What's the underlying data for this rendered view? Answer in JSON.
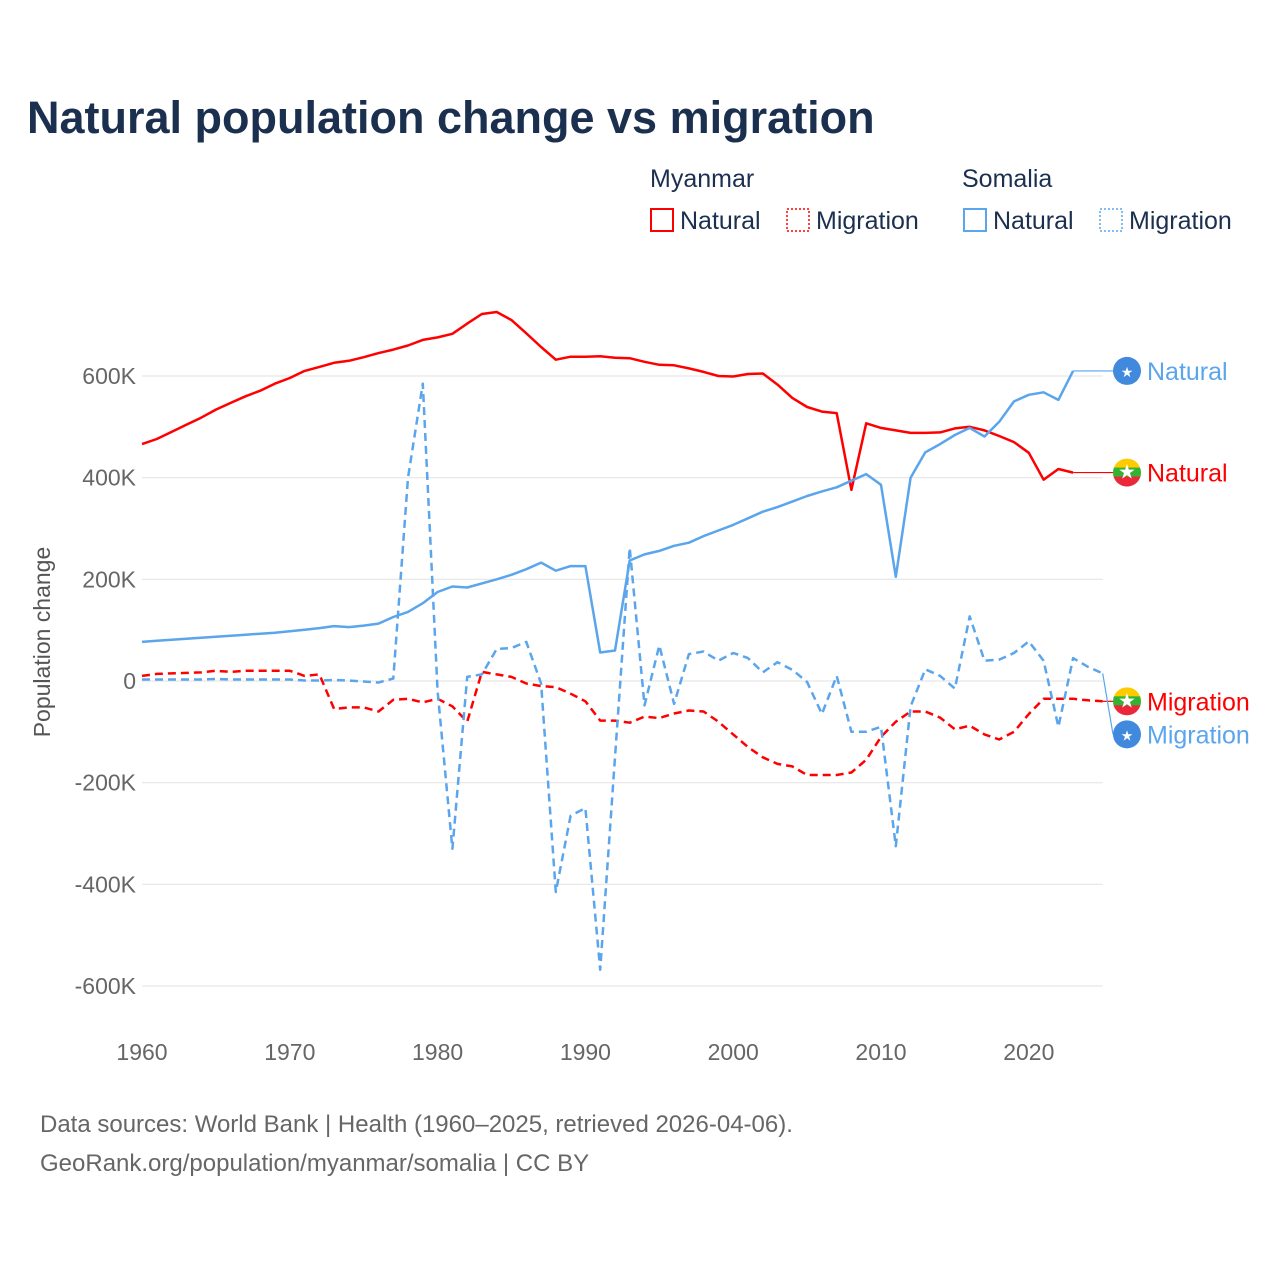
{
  "colors": {
    "myanmar": "#ff0000",
    "somalia": "#5aa5ec",
    "grid": "#e6e6e6",
    "title": "#1b2f4f"
  },
  "chart_data": {
    "type": "line",
    "title": "Natural population change vs migration",
    "xlabel": "",
    "ylabel": "Population change",
    "xlim": [
      1960,
      2025
    ],
    "ylim": [
      -600000,
      750000
    ],
    "x_ticks": [
      1960,
      1970,
      1980,
      1990,
      2000,
      2010,
      2020
    ],
    "x_tick_labels": [
      "1960",
      "1970",
      "1980",
      "1990",
      "2000",
      "2010",
      "2020"
    ],
    "y_ticks": [
      600000,
      400000,
      200000,
      0,
      -200000,
      -400000,
      -600000
    ],
    "y_tick_labels": [
      "600K",
      "400K",
      "200K",
      "0",
      "-200K",
      "-400K",
      "-600K"
    ],
    "grid": true,
    "legend": {
      "placement": "top-right",
      "groups": [
        {
          "name": "Myanmar",
          "entries": [
            "Natural",
            "Migration"
          ]
        },
        {
          "name": "Somalia",
          "entries": [
            "Natural",
            "Migration"
          ]
        }
      ]
    },
    "start_year": 1960,
    "series": [
      {
        "name": "Myanmar Natural",
        "country": "Myanmar",
        "kind": "Natural",
        "end_label": "Natural",
        "color": "#ff0000",
        "dash": false,
        "values": [
          466,
          476,
          490,
          504,
          518,
          534,
          547,
          560,
          571,
          585,
          596,
          610,
          618,
          626,
          630,
          637,
          645,
          652,
          660,
          671,
          676,
          683,
          703,
          722,
          726,
          710,
          684,
          657,
          632,
          638,
          638,
          639,
          636,
          635,
          628,
          622,
          621,
          615,
          608,
          600,
          599,
          604,
          605,
          583,
          557,
          539,
          530,
          527,
          376,
          507,
          498,
          493,
          488,
          488,
          489,
          497,
          500,
          493,
          482,
          470,
          449,
          396,
          417,
          410
        ]
      },
      {
        "name": "Myanmar Migration",
        "country": "Myanmar",
        "kind": "Migration",
        "end_label": "Migration",
        "color": "#ff0000",
        "dash": true,
        "values": [
          10,
          14,
          15,
          16,
          17,
          20,
          18,
          20,
          20,
          20,
          20,
          10,
          13,
          -55,
          -52,
          -52,
          -60,
          -37,
          -35,
          -42,
          -35,
          -50,
          -80,
          18,
          13,
          8,
          -5,
          -10,
          -12,
          -25,
          -40,
          -78,
          -78,
          -82,
          -70,
          -73,
          -64,
          -58,
          -60,
          -80,
          -105,
          -130,
          -150,
          -163,
          -168,
          -185,
          -185,
          -185,
          -180,
          -155,
          -110,
          -80,
          -60,
          -60,
          -72,
          -95,
          -88,
          -105,
          -115,
          -100,
          -65,
          -35,
          -35,
          -35,
          -38,
          -40
        ]
      },
      {
        "name": "Somalia Natural",
        "country": "Somalia",
        "kind": "Natural",
        "end_label": "Natural",
        "color": "#5aa5ec",
        "dash": false,
        "values": [
          77,
          79,
          81,
          83,
          85,
          87,
          89,
          91,
          93,
          95,
          98,
          101,
          104,
          108,
          106,
          109,
          113,
          126,
          136,
          153,
          175,
          186,
          184,
          192,
          200,
          209,
          220,
          233,
          217,
          226,
          226,
          56,
          60,
          237,
          249,
          256,
          266,
          272,
          285,
          296,
          307,
          320,
          333,
          342,
          353,
          364,
          373,
          381,
          394,
          407,
          386,
          205,
          400,
          450,
          466,
          484,
          498,
          481,
          510,
          550,
          563,
          568,
          553,
          610
        ]
      },
      {
        "name": "Somalia Migration",
        "country": "Somalia",
        "kind": "Migration",
        "end_label": "Migration",
        "color": "#5aa5ec",
        "dash": true,
        "values": [
          3,
          3,
          3,
          3,
          3,
          4,
          3,
          3,
          3,
          3,
          3,
          1,
          1,
          2,
          1,
          -1,
          -3,
          5,
          400,
          585,
          -20,
          -330,
          8,
          13,
          63,
          65,
          77,
          -5,
          -415,
          -265,
          -250,
          -568,
          -150,
          262,
          -48,
          70,
          -45,
          53,
          58,
          40,
          55,
          45,
          17,
          37,
          22,
          -2,
          -65,
          10,
          -100,
          -100,
          -90,
          -325,
          -50,
          23,
          10,
          -15,
          127,
          40,
          42,
          55,
          78,
          40,
          -90,
          45,
          28,
          15
        ]
      }
    ],
    "value_unit": "thousands"
  },
  "footer": {
    "line1": "Data sources: World Bank | Health (1960–2025, retrieved 2026-04-06).",
    "line2": "GeoRank.org/population/myanmar/somalia | CC BY"
  }
}
